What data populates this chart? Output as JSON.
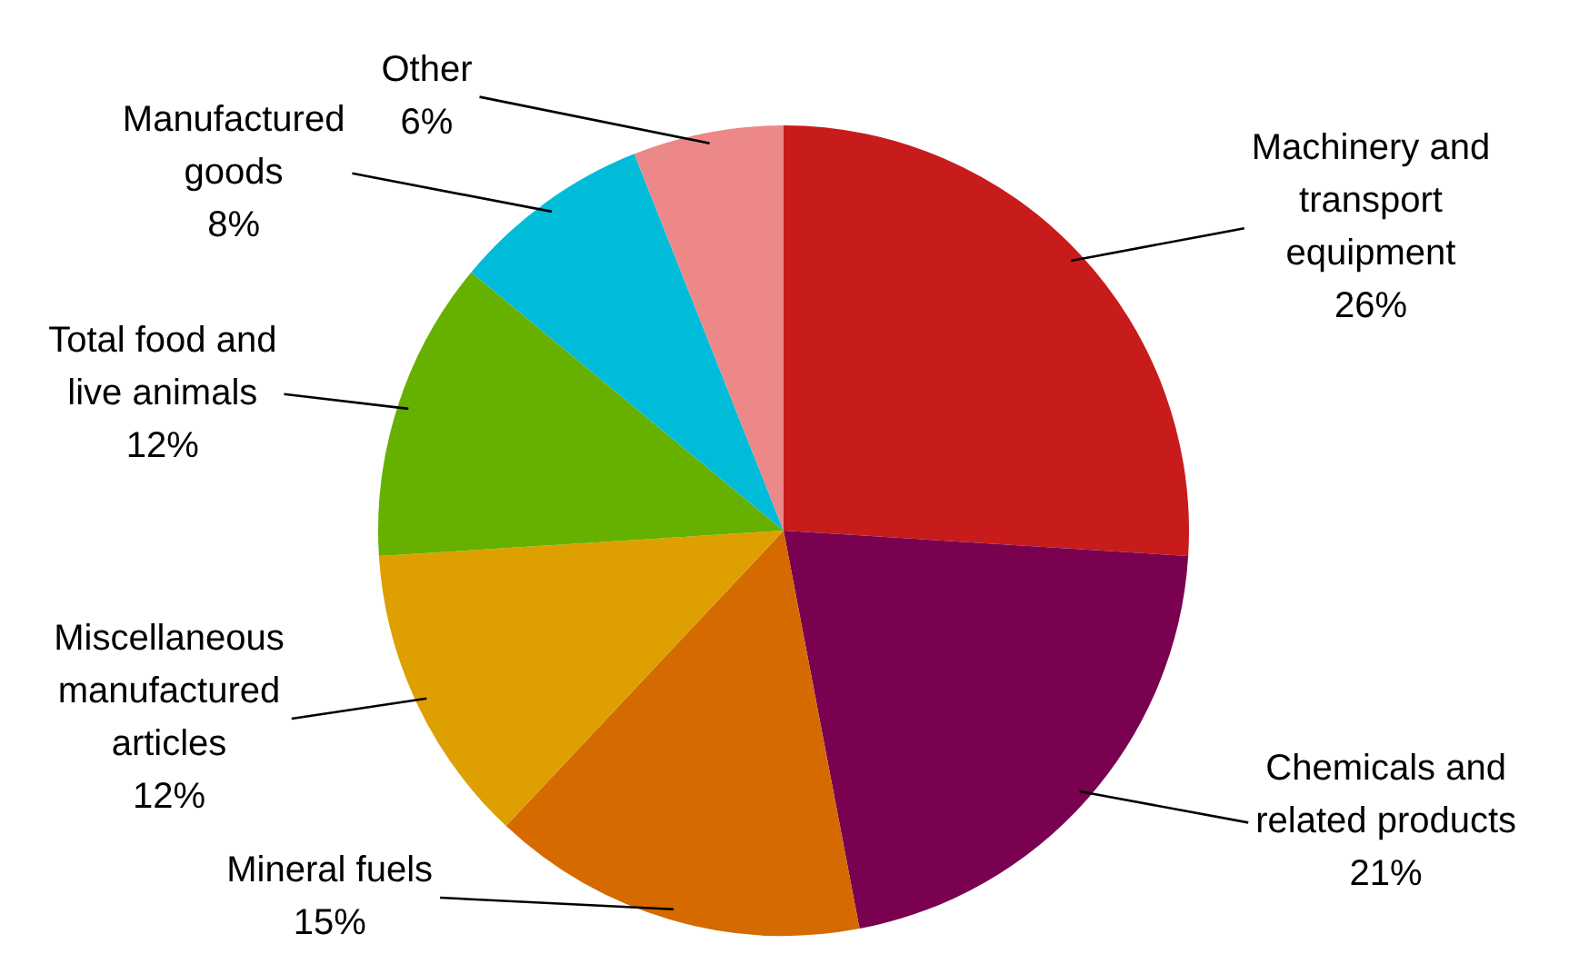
{
  "chart_data": {
    "type": "pie",
    "categories": [
      "Machinery and transport equipment",
      "Chemicals and related products",
      "Mineral fuels",
      "Miscellaneous manufactured articles",
      "Total food and live animals",
      "Manufactured goods",
      "Other"
    ],
    "values": [
      26,
      21,
      15,
      12,
      12,
      8,
      6
    ],
    "colors": [
      "#c81b1b",
      "#7a0050",
      "#d46a00",
      "#dea000",
      "#66b000",
      "#00bcd8",
      "#ec8888"
    ],
    "value_labels": [
      "26%",
      "21%",
      "15%",
      "12%",
      "12%",
      "8%",
      "6%"
    ],
    "legend": false
  }
}
